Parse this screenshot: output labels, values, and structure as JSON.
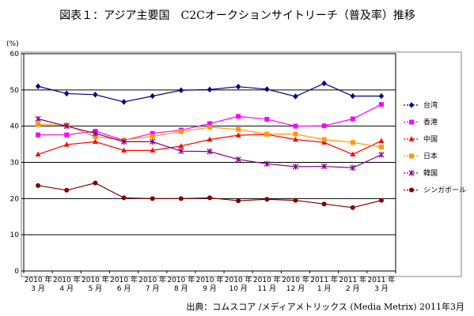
{
  "chart_data": {
    "type": "line",
    "title": "図表１：アジア主要国　C2Cオークションサイトリーチ（普及率）推移",
    "ylabel": "(%)",
    "ylim": [
      0,
      60
    ],
    "yticks": [
      0,
      10,
      20,
      30,
      40,
      50,
      60
    ],
    "grid": true,
    "legend_position": "right",
    "categories": [
      [
        "2010 年",
        "3 月"
      ],
      [
        "2010 年",
        "4 月"
      ],
      [
        "2010 年",
        "5 月"
      ],
      [
        "2010 年",
        "6 月"
      ],
      [
        "2010 年",
        "7 月"
      ],
      [
        "2010 年",
        "8 月"
      ],
      [
        "2010 年",
        "9 月"
      ],
      [
        "2010 年",
        "10 月"
      ],
      [
        "2010 年",
        "11 月"
      ],
      [
        "2010 年",
        "12 月"
      ],
      [
        "2011 年",
        "1 月"
      ],
      [
        "2011 年",
        "2 月"
      ],
      [
        "2011 年",
        "3 月"
      ]
    ],
    "series": [
      {
        "name": "台湾",
        "color": "#000080",
        "marker": "diamond",
        "values": [
          51.0,
          49.0,
          48.7,
          46.7,
          48.3,
          49.9,
          50.1,
          50.9,
          50.2,
          48.2,
          51.8,
          48.3,
          48.3
        ]
      },
      {
        "name": "香港",
        "color": "#ff00ff",
        "marker": "square",
        "values": [
          37.6,
          37.6,
          38.6,
          36.1,
          38.0,
          38.9,
          40.7,
          42.7,
          41.9,
          40.0,
          40.1,
          42.0,
          46.0
        ]
      },
      {
        "name": "中国",
        "color": "#ff0000",
        "marker": "triangle",
        "values": [
          32.2,
          34.9,
          35.7,
          33.3,
          33.3,
          34.5,
          36.3,
          37.5,
          37.7,
          36.3,
          35.5,
          32.2,
          35.9
        ]
      },
      {
        "name": "日本",
        "color": "#ff9900",
        "marker": "square",
        "values": [
          40.5,
          40.3,
          37.1,
          36.2,
          37.2,
          38.5,
          39.7,
          39.1,
          37.8,
          37.8,
          36.3,
          35.5,
          34.2
        ]
      },
      {
        "name": "韓国",
        "color": "#800080",
        "marker": "star",
        "values": [
          42.0,
          40.0,
          38.0,
          35.7,
          35.7,
          33.1,
          33.0,
          30.8,
          29.6,
          28.8,
          28.9,
          28.5,
          32.1
        ]
      },
      {
        "name": "シンガポール",
        "color": "#800000",
        "marker": "circle",
        "values": [
          23.6,
          22.3,
          24.3,
          20.2,
          20.0,
          20.0,
          20.2,
          19.4,
          19.8,
          19.5,
          18.5,
          17.5,
          19.5
        ]
      }
    ]
  },
  "source_note": "出典：コムスコア /メディアメトリックス (Media Metrix) 2011年3月"
}
